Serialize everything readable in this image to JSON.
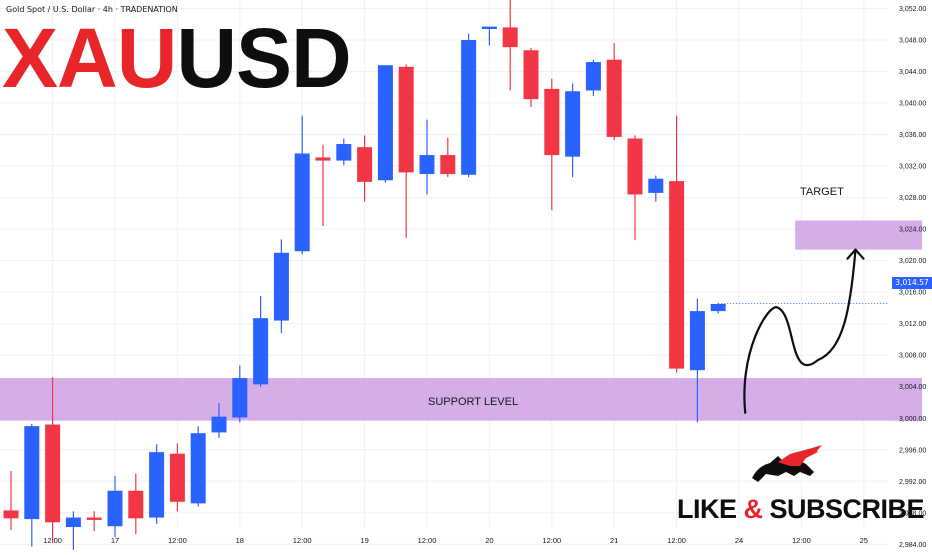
{
  "header": {
    "symbol_line": "Gold Spot / U.S. Dollar · 4h · TRADENATION"
  },
  "title": {
    "part1": "XAU",
    "part2": "USD"
  },
  "annotations": {
    "target": "TARGET",
    "support": "SUPPORT LEVEL",
    "cta_like": "LIKE",
    "cta_amp": "&",
    "cta_subscribe": "SUBSCRIBE"
  },
  "colors": {
    "background": "#ffffff",
    "bull_candle": "#2962ff",
    "bear_candle": "#f23645",
    "zone": "#ce9fe3",
    "grid": "#eef0f4",
    "price_tag": "#2962ff",
    "title_red": "#e8262a",
    "title_black": "#0e0e0e"
  },
  "icons": {
    "logo": "bull-vs-bear-logo-icon",
    "arrow": "curved-arrow-icon"
  },
  "chart_data": {
    "type": "candlestick",
    "title": "",
    "timeframe": "4h",
    "y_axis": {
      "min": 2982,
      "max": 3054,
      "ticks": [
        2984,
        2988,
        2992,
        2996,
        3000,
        3004,
        3008,
        3012,
        3016,
        3020,
        3024,
        3028,
        3032,
        3036,
        3040,
        3044,
        3048,
        3052
      ],
      "tick_labels": [
        "2,984.00",
        "2,988.00",
        "2,992.00",
        "2,996.00",
        "3,000.00",
        "3,004.00",
        "3,008.00",
        "3,012.00",
        "3,016.00",
        "3,020.00",
        "3,024.00",
        "3,028.00",
        "3,032.00",
        "3,036.00",
        "3,040.00",
        "3,044.00",
        "3,048.00",
        "3,052.00"
      ]
    },
    "x_axis": {
      "tick_labels": [
        {
          "label": "12:00",
          "index": 2
        },
        {
          "label": "17",
          "index": 5
        },
        {
          "label": "12:00",
          "index": 8
        },
        {
          "label": "18",
          "index": 11
        },
        {
          "label": "12:00",
          "index": 14
        },
        {
          "label": "19",
          "index": 17
        },
        {
          "label": "12:00",
          "index": 20
        },
        {
          "label": "20",
          "index": 23
        },
        {
          "label": "12:00",
          "index": 26
        },
        {
          "label": "21",
          "index": 29
        },
        {
          "label": "12:00",
          "index": 32
        },
        {
          "label": "24",
          "index": 35
        },
        {
          "label": "12:00",
          "index": 38
        },
        {
          "label": "25",
          "index": 41
        }
      ],
      "last_index": 42.5
    },
    "candles": [
      {
        "o": 2988.3,
        "h": 2993.3,
        "l": 2985.8,
        "c": 2987.3
      },
      {
        "o": 2987.2,
        "h": 2999.3,
        "l": 2983.7,
        "c": 2999.0
      },
      {
        "o": 2999.2,
        "h": 3005.2,
        "l": 2984.2,
        "c": 2986.8
      },
      {
        "o": 2986.2,
        "h": 2988.2,
        "l": 2983.2,
        "c": 2987.4
      },
      {
        "o": 2987.4,
        "h": 2988.2,
        "l": 2985.7,
        "c": 2987.1
      },
      {
        "o": 2986.3,
        "h": 2992.7,
        "l": 2984.9,
        "c": 2990.8
      },
      {
        "o": 2990.8,
        "h": 2993.0,
        "l": 2985.3,
        "c": 2987.3
      },
      {
        "o": 2987.4,
        "h": 2996.7,
        "l": 2986.6,
        "c": 2995.7
      },
      {
        "o": 2995.5,
        "h": 2996.8,
        "l": 2988.2,
        "c": 2989.4
      },
      {
        "o": 2989.2,
        "h": 2999.0,
        "l": 2988.8,
        "c": 2998.1
      },
      {
        "o": 2998.2,
        "h": 3001.9,
        "l": 2997.5,
        "c": 3000.2
      },
      {
        "o": 3000.1,
        "h": 3006.7,
        "l": 2999.5,
        "c": 3005.1
      },
      {
        "o": 3004.3,
        "h": 3015.5,
        "l": 3004.0,
        "c": 3012.7
      },
      {
        "o": 3012.4,
        "h": 3022.7,
        "l": 3010.8,
        "c": 3021.0
      },
      {
        "o": 3021.2,
        "h": 3038.4,
        "l": 3020.8,
        "c": 3033.6
      },
      {
        "o": 3033.1,
        "h": 3034.7,
        "l": 3024.4,
        "c": 3032.7
      },
      {
        "o": 3032.7,
        "h": 3035.5,
        "l": 3032.1,
        "c": 3034.8
      },
      {
        "o": 3034.4,
        "h": 3035.9,
        "l": 3027.5,
        "c": 3030.0
      },
      {
        "o": 3030.2,
        "h": 3044.8,
        "l": 3029.9,
        "c": 3044.8
      },
      {
        "o": 3044.6,
        "h": 3044.9,
        "l": 3022.9,
        "c": 3031.2
      },
      {
        "o": 3031.0,
        "h": 3037.9,
        "l": 3028.4,
        "c": 3033.4
      },
      {
        "o": 3033.4,
        "h": 3035.6,
        "l": 3030.6,
        "c": 3031.0
      },
      {
        "o": 3030.9,
        "h": 3048.8,
        "l": 3030.6,
        "c": 3048.0
      },
      {
        "o": 3049.4,
        "h": 3049.6,
        "l": 3047.3,
        "c": 3049.7
      },
      {
        "o": 3049.6,
        "h": 3053.4,
        "l": 3041.6,
        "c": 3047.1
      },
      {
        "o": 3046.7,
        "h": 3047.0,
        "l": 3039.5,
        "c": 3040.5
      },
      {
        "o": 3041.8,
        "h": 3043.1,
        "l": 3026.4,
        "c": 3033.4
      },
      {
        "o": 3033.2,
        "h": 3042.5,
        "l": 3030.6,
        "c": 3041.5
      },
      {
        "o": 3041.6,
        "h": 3045.5,
        "l": 3040.9,
        "c": 3045.2
      },
      {
        "o": 3045.5,
        "h": 3047.6,
        "l": 3035.3,
        "c": 3035.7
      },
      {
        "o": 3035.5,
        "h": 3035.9,
        "l": 3022.6,
        "c": 3028.4
      },
      {
        "o": 3028.6,
        "h": 3030.8,
        "l": 3027.5,
        "c": 3030.4
      },
      {
        "o": 3030.1,
        "h": 3038.4,
        "l": 3005.8,
        "c": 3006.3
      },
      {
        "o": 3006.1,
        "h": 3015.2,
        "l": 2999.5,
        "c": 3013.6
      },
      {
        "o": 3013.6,
        "h": 3014.6,
        "l": 3013.3,
        "c": 3014.5
      }
    ],
    "current_price": 3014.57,
    "current_price_label": "3,014.57",
    "zones": [
      {
        "name": "support",
        "from": 2999.7,
        "to": 3005.1,
        "x_from_index": -0.6,
        "x_to_index": 43.8
      },
      {
        "name": "target",
        "from": 3021.4,
        "to": 3025.1,
        "x_from_index": 37.7,
        "x_to_index": 43.8
      }
    ],
    "projection_path": {
      "start": {
        "index": 35.3,
        "value": 3000.7
      },
      "points": [
        {
          "index": 36.8,
          "value": 3014.1
        },
        {
          "index": 38.8,
          "value": 3007.4
        },
        {
          "index": 40.6,
          "value": 3021.4
        }
      ]
    },
    "grid": true
  }
}
